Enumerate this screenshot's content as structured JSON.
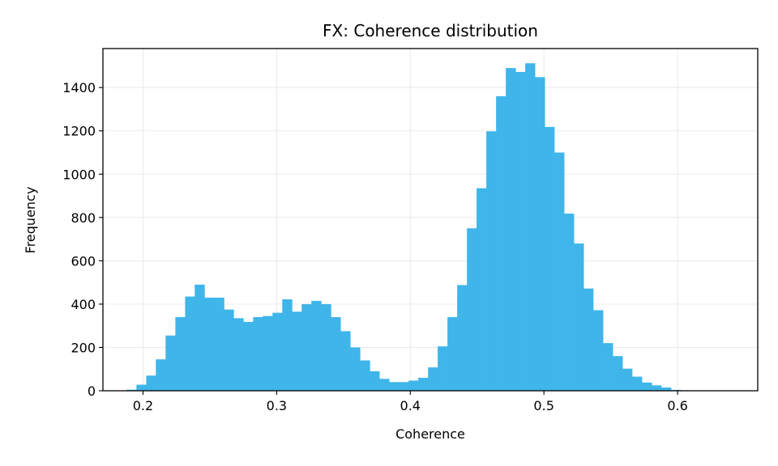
{
  "chart_data": {
    "type": "bar",
    "subtype": "histogram",
    "title": "FX: Coherence distribution",
    "xlabel": "Coherence",
    "ylabel": "Frequency",
    "xlim": [
      0.17,
      0.66
    ],
    "ylim": [
      0,
      1580
    ],
    "grid": true,
    "bar_color": "#3fb5ea",
    "bin_width": 0.00727,
    "x_ticks": [
      0.2,
      0.3,
      0.4,
      0.5,
      0.6
    ],
    "x_tick_labels": [
      "0.2",
      "0.3",
      "0.4",
      "0.5",
      "0.6"
    ],
    "y_ticks": [
      0,
      200,
      400,
      600,
      800,
      1000,
      1200,
      1400
    ],
    "y_tick_labels": [
      "0",
      "200",
      "400",
      "600",
      "800",
      "1000",
      "1200",
      "1400"
    ],
    "bin_starts": [
      0.1878,
      0.1951,
      0.2024,
      0.2096,
      0.2169,
      0.2242,
      0.2315,
      0.2387,
      0.246,
      0.2533,
      0.2605,
      0.2678,
      0.2751,
      0.2824,
      0.2896,
      0.2969,
      0.3042,
      0.3115,
      0.3187,
      0.326,
      0.3333,
      0.3405,
      0.3478,
      0.3551,
      0.3624,
      0.3696,
      0.3769,
      0.3842,
      0.3915,
      0.3987,
      0.406,
      0.4133,
      0.4205,
      0.4278,
      0.4351,
      0.4424,
      0.4496,
      0.4569,
      0.4642,
      0.4715,
      0.4787,
      0.486,
      0.4933,
      0.5005,
      0.5078,
      0.5151,
      0.5224,
      0.5296,
      0.5369,
      0.5442,
      0.5515,
      0.5587,
      0.566,
      0.5733,
      0.5805,
      0.5878,
      0.5951,
      0.6024,
      0.6096,
      0.6169,
      0.6242,
      0.6315
    ],
    "values": [
      5,
      28,
      70,
      145,
      255,
      340,
      435,
      490,
      430,
      430,
      375,
      335,
      318,
      340,
      345,
      360,
      422,
      365,
      400,
      415,
      400,
      340,
      275,
      200,
      140,
      90,
      55,
      40,
      40,
      47,
      60,
      108,
      205,
      340,
      488,
      750,
      935,
      1198,
      1360,
      1490,
      1472,
      1512,
      1448,
      1218,
      1100,
      818,
      680,
      472,
      372,
      220,
      160,
      102,
      65,
      38,
      25,
      15,
      4,
      2,
      1,
      1,
      1,
      1
    ]
  }
}
